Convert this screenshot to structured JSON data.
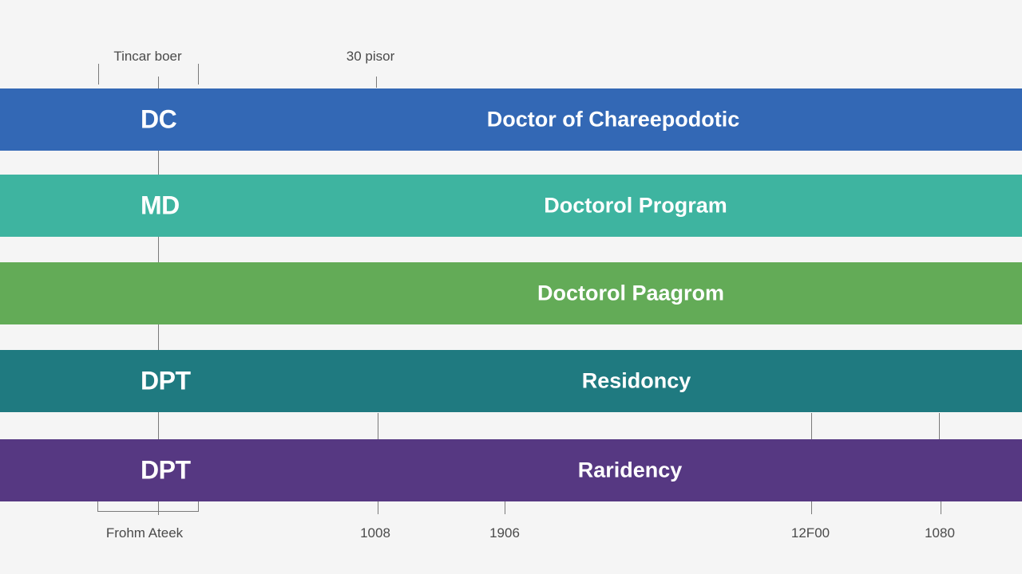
{
  "chart_data": {
    "type": "bar",
    "orientation": "horizontal",
    "top_labels": [
      "Tincar boer",
      "30 pisor"
    ],
    "bars": [
      {
        "code": "DC",
        "label": "Doctor of Chareepodotic",
        "color": "#3368b5"
      },
      {
        "code": "MD",
        "label": "Doctorol Program",
        "color": "#3eb4a0"
      },
      {
        "code": "",
        "label": "Doctorol Paagrom",
        "color": "#63ab57"
      },
      {
        "code": "DPT",
        "label": "Residoncy",
        "color": "#1f7a80"
      },
      {
        "code": "DPT",
        "label": "Raridency",
        "color": "#563882"
      }
    ],
    "x_tick_labels": [
      "Frohm Ateek",
      "1008",
      "1906",
      "12F00",
      "1080"
    ],
    "grid": false,
    "legend": "none"
  }
}
